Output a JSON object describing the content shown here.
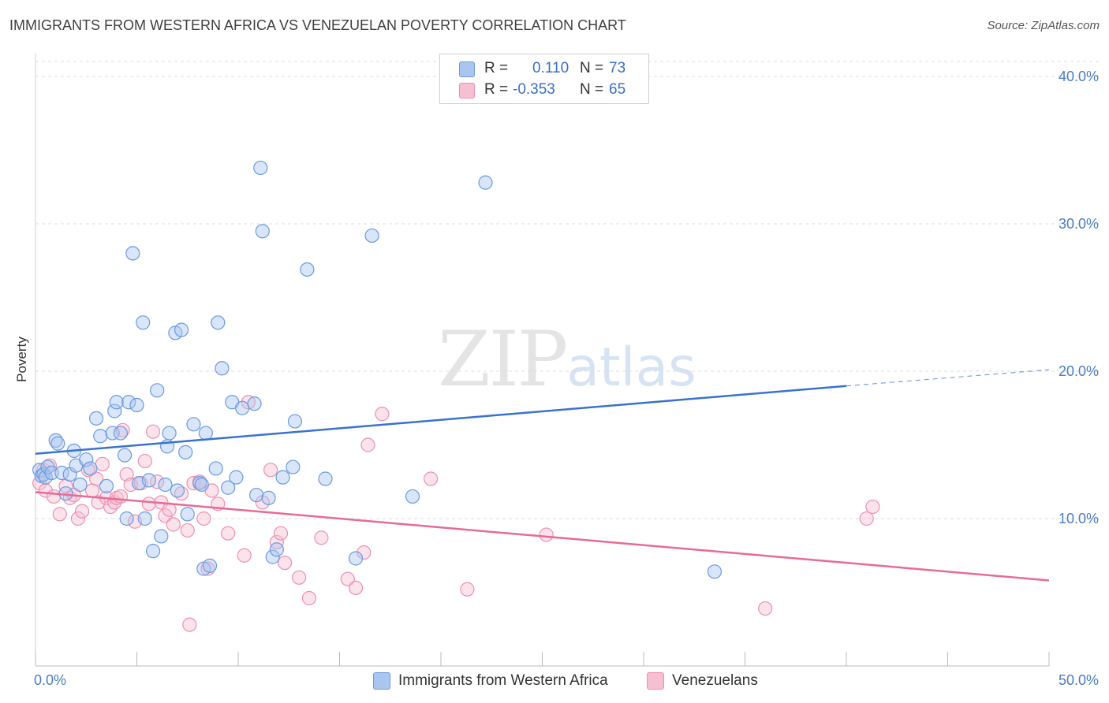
{
  "title": "IMMIGRANTS FROM WESTERN AFRICA VS VENEZUELAN POVERTY CORRELATION CHART",
  "source": "Source: ZipAtlas.com",
  "watermark": {
    "zip": "ZIP",
    "atlas": "atlas"
  },
  "legend": {
    "rows": [
      {
        "r_label": "R =",
        "r_value": "0.110",
        "n_label": "N =",
        "n_value": "73",
        "color": "#6b9ae0"
      },
      {
        "r_label": "R =",
        "r_value": "-0.353",
        "n_label": "N =",
        "n_value": "65",
        "color": "#ef8fb0"
      }
    ]
  },
  "bottom_legend": [
    {
      "label": "Immigrants from Western Africa",
      "color": "#6b9ae0"
    },
    {
      "label": "Venezuelans",
      "color": "#ef8fb0"
    }
  ],
  "colors": {
    "blue_fill": "#aac6f0",
    "blue_stroke": "#6b9ae0",
    "blue_line": "#3a72d0",
    "pink_fill": "#f7c0d2",
    "pink_stroke": "#ef8fb0",
    "pink_line": "#e86a98",
    "grid": "#dddddd",
    "tick_text": "#4a7cc7"
  },
  "chart_data": {
    "type": "scatter",
    "title": "IMMIGRANTS FROM WESTERN AFRICA VS VENEZUELAN POVERTY CORRELATION CHART",
    "xlabel": "",
    "ylabel": "Poverty",
    "xlim": [
      0,
      50
    ],
    "ylim": [
      0,
      40
    ],
    "x_tick_labels": [
      "0.0%",
      "50.0%"
    ],
    "y_ticks": [
      10,
      20,
      30,
      40
    ],
    "y_tick_labels": [
      "10.0%",
      "20.0%",
      "30.0%",
      "40.0%"
    ],
    "grid": true,
    "series": [
      {
        "name": "Immigrants from Western Africa",
        "trend": {
          "x": [
            0,
            40
          ],
          "y": [
            14.4,
            19.0
          ],
          "dashed_to": [
            50,
            20.1
          ]
        },
        "points": [
          [
            0.2,
            13.3
          ],
          [
            0.3,
            12.9
          ],
          [
            0.4,
            13.0
          ],
          [
            0.5,
            12.8
          ],
          [
            0.6,
            13.5
          ],
          [
            0.8,
            13.1
          ],
          [
            1.0,
            15.3
          ],
          [
            1.1,
            15.1
          ],
          [
            1.3,
            13.1
          ],
          [
            1.5,
            11.7
          ],
          [
            1.7,
            13.0
          ],
          [
            1.9,
            14.6
          ],
          [
            2.0,
            13.6
          ],
          [
            2.2,
            12.3
          ],
          [
            2.5,
            14.0
          ],
          [
            2.7,
            13.4
          ],
          [
            3.0,
            16.8
          ],
          [
            3.2,
            15.6
          ],
          [
            3.5,
            12.2
          ],
          [
            3.8,
            15.8
          ],
          [
            3.9,
            17.3
          ],
          [
            4.0,
            17.9
          ],
          [
            4.2,
            15.8
          ],
          [
            4.4,
            14.3
          ],
          [
            4.5,
            10.0
          ],
          [
            4.6,
            17.9
          ],
          [
            4.8,
            28.0
          ],
          [
            5.0,
            17.7
          ],
          [
            5.1,
            12.4
          ],
          [
            5.3,
            23.3
          ],
          [
            5.4,
            10.0
          ],
          [
            5.6,
            12.6
          ],
          [
            5.8,
            7.8
          ],
          [
            6.0,
            18.7
          ],
          [
            6.2,
            8.8
          ],
          [
            6.4,
            12.3
          ],
          [
            6.5,
            14.9
          ],
          [
            6.6,
            15.8
          ],
          [
            6.9,
            22.6
          ],
          [
            7.0,
            11.9
          ],
          [
            7.2,
            22.8
          ],
          [
            7.4,
            14.5
          ],
          [
            7.5,
            10.3
          ],
          [
            7.8,
            16.4
          ],
          [
            8.1,
            12.4
          ],
          [
            8.2,
            12.3
          ],
          [
            8.3,
            6.6
          ],
          [
            8.4,
            15.8
          ],
          [
            8.6,
            6.8
          ],
          [
            8.9,
            13.4
          ],
          [
            9.0,
            23.3
          ],
          [
            9.2,
            20.2
          ],
          [
            9.5,
            12.1
          ],
          [
            9.7,
            17.9
          ],
          [
            9.9,
            12.8
          ],
          [
            10.2,
            17.5
          ],
          [
            10.8,
            17.8
          ],
          [
            10.9,
            11.6
          ],
          [
            11.1,
            33.8
          ],
          [
            11.2,
            29.5
          ],
          [
            11.5,
            11.4
          ],
          [
            11.7,
            7.4
          ],
          [
            11.9,
            7.9
          ],
          [
            12.2,
            12.8
          ],
          [
            12.7,
            13.5
          ],
          [
            12.8,
            16.6
          ],
          [
            13.4,
            26.9
          ],
          [
            14.3,
            12.7
          ],
          [
            15.8,
            7.3
          ],
          [
            16.6,
            29.2
          ],
          [
            18.6,
            11.5
          ],
          [
            22.2,
            32.8
          ],
          [
            33.5,
            6.4
          ]
        ]
      },
      {
        "name": "Venezuelans",
        "trend": {
          "x": [
            0,
            50
          ],
          "y": [
            11.8,
            5.8
          ]
        },
        "points": [
          [
            0.2,
            12.4
          ],
          [
            0.4,
            13.3
          ],
          [
            0.5,
            11.9
          ],
          [
            0.7,
            13.6
          ],
          [
            0.9,
            11.5
          ],
          [
            1.2,
            10.3
          ],
          [
            1.5,
            12.2
          ],
          [
            1.7,
            11.4
          ],
          [
            1.9,
            11.6
          ],
          [
            2.1,
            10.0
          ],
          [
            2.3,
            10.5
          ],
          [
            2.6,
            13.3
          ],
          [
            2.8,
            11.9
          ],
          [
            3.0,
            12.7
          ],
          [
            3.1,
            11.1
          ],
          [
            3.3,
            13.7
          ],
          [
            3.5,
            11.4
          ],
          [
            3.7,
            10.8
          ],
          [
            3.9,
            11.1
          ],
          [
            4.0,
            11.4
          ],
          [
            4.2,
            11.5
          ],
          [
            4.3,
            16.0
          ],
          [
            4.5,
            13.0
          ],
          [
            4.7,
            12.3
          ],
          [
            4.9,
            9.8
          ],
          [
            5.2,
            12.4
          ],
          [
            5.4,
            13.9
          ],
          [
            5.6,
            11.0
          ],
          [
            5.8,
            15.9
          ],
          [
            6.0,
            12.5
          ],
          [
            6.2,
            11.1
          ],
          [
            6.4,
            10.2
          ],
          [
            6.6,
            10.6
          ],
          [
            6.8,
            9.6
          ],
          [
            7.2,
            11.7
          ],
          [
            7.5,
            9.2
          ],
          [
            7.6,
            2.8
          ],
          [
            7.8,
            12.4
          ],
          [
            8.1,
            12.5
          ],
          [
            8.3,
            10.0
          ],
          [
            8.5,
            6.6
          ],
          [
            8.7,
            11.9
          ],
          [
            9.0,
            11.0
          ],
          [
            9.5,
            9.0
          ],
          [
            10.3,
            7.5
          ],
          [
            10.5,
            17.9
          ],
          [
            11.2,
            11.1
          ],
          [
            11.6,
            13.3
          ],
          [
            11.9,
            8.4
          ],
          [
            12.1,
            9.0
          ],
          [
            12.3,
            7.0
          ],
          [
            13.0,
            6.0
          ],
          [
            13.5,
            4.6
          ],
          [
            14.1,
            8.7
          ],
          [
            15.4,
            5.9
          ],
          [
            15.8,
            5.3
          ],
          [
            16.2,
            7.7
          ],
          [
            16.4,
            15.0
          ],
          [
            17.1,
            17.1
          ],
          [
            19.5,
            12.7
          ],
          [
            21.3,
            5.2
          ],
          [
            25.2,
            8.9
          ],
          [
            36.0,
            3.9
          ],
          [
            41.0,
            10.0
          ],
          [
            41.3,
            10.8
          ]
        ]
      }
    ]
  }
}
